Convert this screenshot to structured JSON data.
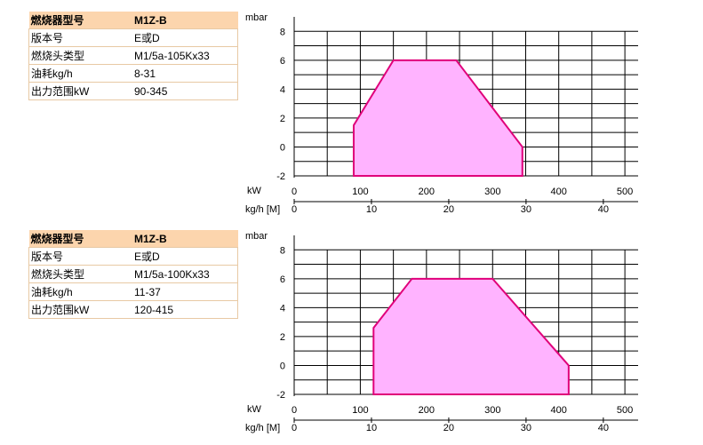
{
  "panels": [
    {
      "table": [
        {
          "label": "燃烧器型号",
          "value": "M1Z-B"
        },
        {
          "label": "版本号",
          "value": "E或D"
        },
        {
          "label": "燃烧头类型",
          "value": "M1/5a-105Kx33"
        },
        {
          "label": "油耗kg/h",
          "value": "8-31"
        },
        {
          "label": "出力范围kW",
          "value": "90-345"
        }
      ],
      "ylabel": "mbar",
      "xlabel_kw": "kW",
      "xlabel_kgh": "kg/h [M]"
    },
    {
      "table": [
        {
          "label": "燃烧器型号",
          "value": "M1Z-B"
        },
        {
          "label": "版本号",
          "value": "E或D"
        },
        {
          "label": "燃烧头类型",
          "value": "M1/5a-100Kx33"
        },
        {
          "label": "油耗kg/h",
          "value": "11-37"
        },
        {
          "label": "出力范围kW",
          "value": "120-415"
        }
      ],
      "ylabel": "mbar",
      "xlabel_kw": "kW",
      "xlabel_kgh": "kg/h [M]"
    }
  ],
  "colors": {
    "area_fill": "#ffb3ff",
    "area_stroke": "#e0007a",
    "grid": "#000000",
    "table_header": "#fcd5ad",
    "table_border": "#e8c9a4"
  },
  "chart_data": [
    {
      "type": "area",
      "ylabel": "mbar",
      "xlabel": "kW",
      "secondary_xlabel": "kg/h [M]",
      "xlim": [
        0,
        520
      ],
      "ylim": [
        -2,
        9
      ],
      "secondary_xlim": [
        0,
        44.5
      ],
      "x_ticks": [
        0,
        100,
        200,
        300,
        400,
        500
      ],
      "y_ticks": [
        -2,
        0,
        2,
        4,
        6,
        8
      ],
      "secondary_x_ticks": [
        0,
        10,
        20,
        30,
        40
      ],
      "grid": true,
      "x": [
        90,
        90,
        150,
        245,
        345,
        345
      ],
      "y": [
        -2,
        1.5,
        6,
        6,
        0,
        -2
      ]
    },
    {
      "type": "area",
      "ylabel": "mbar",
      "xlabel": "kW",
      "secondary_xlabel": "kg/h [M]",
      "xlim": [
        0,
        520
      ],
      "ylim": [
        -2,
        9
      ],
      "secondary_xlim": [
        0,
        44.5
      ],
      "x_ticks": [
        0,
        100,
        200,
        300,
        400,
        500
      ],
      "y_ticks": [
        -2,
        0,
        2,
        4,
        6,
        8
      ],
      "secondary_x_ticks": [
        0,
        10,
        20,
        30,
        40
      ],
      "grid": true,
      "x": [
        120,
        120,
        178,
        300,
        415,
        415
      ],
      "y": [
        -2,
        2.6,
        6,
        6,
        0,
        -2
      ]
    }
  ]
}
